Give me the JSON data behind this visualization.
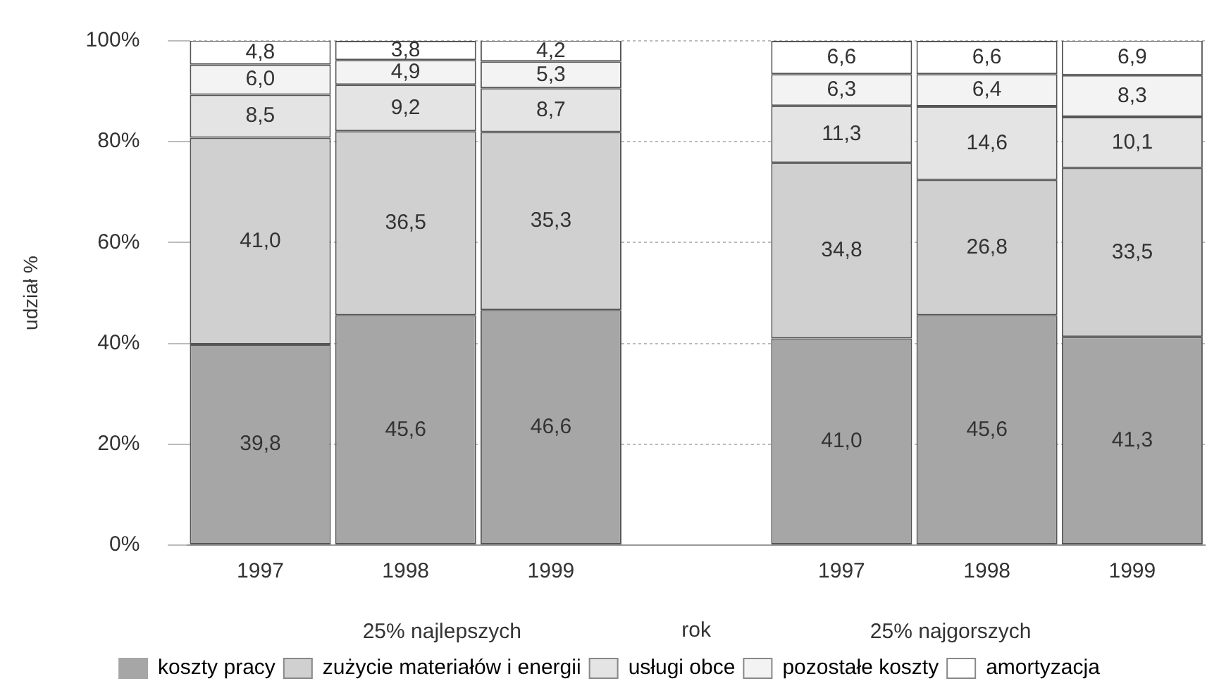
{
  "chart_data": {
    "type": "bar",
    "stacked": true,
    "categories": [
      "1997",
      "1998",
      "1999",
      null,
      "1997",
      "1998",
      "1999"
    ],
    "xlabel": "rok",
    "ylabel": "udział %",
    "annotations": [
      "25% najlepszych",
      "25% najgorszych"
    ],
    "ylim": [
      0,
      100
    ],
    "yticks": [
      {
        "value": 0,
        "label": "0%"
      },
      {
        "value": 20,
        "label": "20%"
      },
      {
        "value": 40,
        "label": "40%"
      },
      {
        "value": 60,
        "label": "60%"
      },
      {
        "value": 80,
        "label": "80%"
      },
      {
        "value": 100,
        "label": "100%"
      }
    ],
    "grid": "y",
    "legend": "bottom",
    "series": [
      {
        "name": "koszty pracy",
        "color": "#a6a6a6",
        "values": [
          39.8,
          45.6,
          46.6,
          null,
          41.0,
          45.6,
          41.3
        ],
        "value_labels": [
          "39,8",
          "45,6",
          "46,6",
          null,
          "41,0",
          "45,6",
          "41,3"
        ]
      },
      {
        "name": "zużycie materiałów i energii",
        "color": "#d0d0d0",
        "values": [
          41.0,
          36.5,
          35.3,
          null,
          34.8,
          26.8,
          33.5
        ],
        "value_labels": [
          "41,0",
          "36,5",
          "35,3",
          null,
          "34,8",
          "26,8",
          "33,5"
        ]
      },
      {
        "name": "usługi obce",
        "color": "#e4e4e4",
        "values": [
          8.5,
          9.2,
          8.7,
          null,
          11.3,
          14.6,
          10.1
        ],
        "value_labels": [
          "8,5",
          "9,2",
          "8,7",
          null,
          "11,3",
          "14,6",
          "10,1"
        ]
      },
      {
        "name": "pozostałe koszty",
        "color": "#f3f3f3",
        "values": [
          6.0,
          4.9,
          5.3,
          null,
          6.3,
          6.4,
          8.3
        ],
        "value_labels": [
          "6,0",
          "4,9",
          "5,3",
          null,
          "6,3",
          "6,4",
          "8,3"
        ]
      },
      {
        "name": "amortyzacja",
        "color": "#ffffff",
        "values": [
          4.8,
          3.8,
          4.2,
          null,
          6.6,
          6.6,
          6.9
        ],
        "value_labels": [
          "4,8",
          "3,8",
          "4,2",
          null,
          "6,6",
          "6,6",
          "6,9"
        ]
      }
    ]
  }
}
